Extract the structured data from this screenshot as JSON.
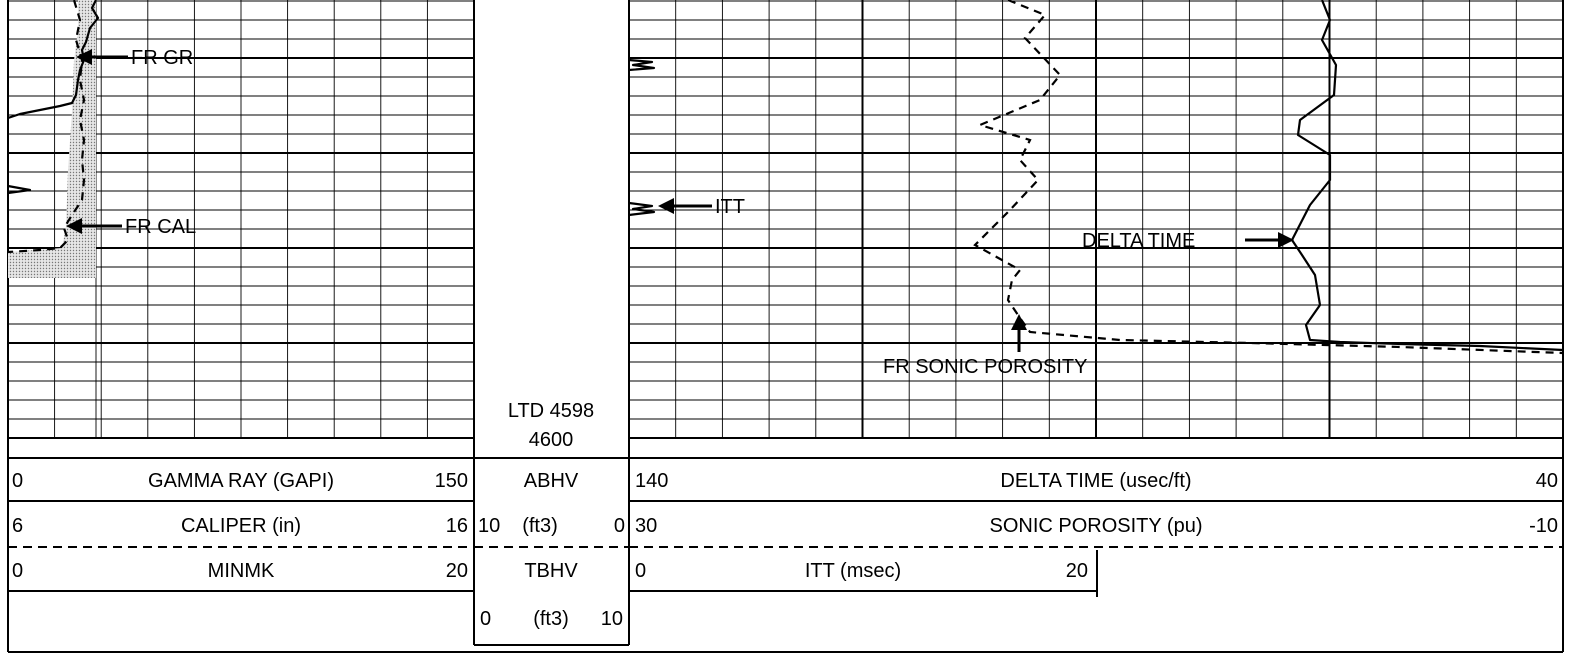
{
  "annotations": {
    "fr_gr": "FR GR",
    "fr_cal": "FR CAL",
    "itt": "ITT",
    "delta_time": "DELTA TIME",
    "fr_sonic_porosity": "FR SONIC POROSITY"
  },
  "depth": {
    "ltd": "LTD 4598",
    "depth_label": "4600"
  },
  "header": {
    "left_track": [
      {
        "min": "0",
        "name": "GAMMA RAY (GAPI)",
        "max": "150",
        "style": "solid"
      },
      {
        "min": "6",
        "name": "CALIPER (in)",
        "max": "16",
        "style": "dashed"
      },
      {
        "min": "0",
        "name": "MINMK",
        "max": "20",
        "style": "solid"
      }
    ],
    "depth_track": [
      {
        "name": "ABHV"
      },
      {
        "min": "10",
        "unit": "(ft3)",
        "max": "0"
      },
      {
        "name": "TBHV"
      },
      {
        "min": "0",
        "unit": "(ft3)",
        "max": "10"
      }
    ],
    "right_track": [
      {
        "min": "140",
        "name": "DELTA TIME (usec/ft)",
        "max": "40",
        "style": "solid"
      },
      {
        "min": "30",
        "name": "SONIC POROSITY (pu)",
        "max": "-10",
        "style": "dashed"
      },
      {
        "min": "0",
        "name": "ITT (msec)",
        "max": "20",
        "style": "solid"
      }
    ]
  },
  "curve_colors": {
    "ink": "#000000",
    "gr_fill": "#c8c8c8"
  }
}
